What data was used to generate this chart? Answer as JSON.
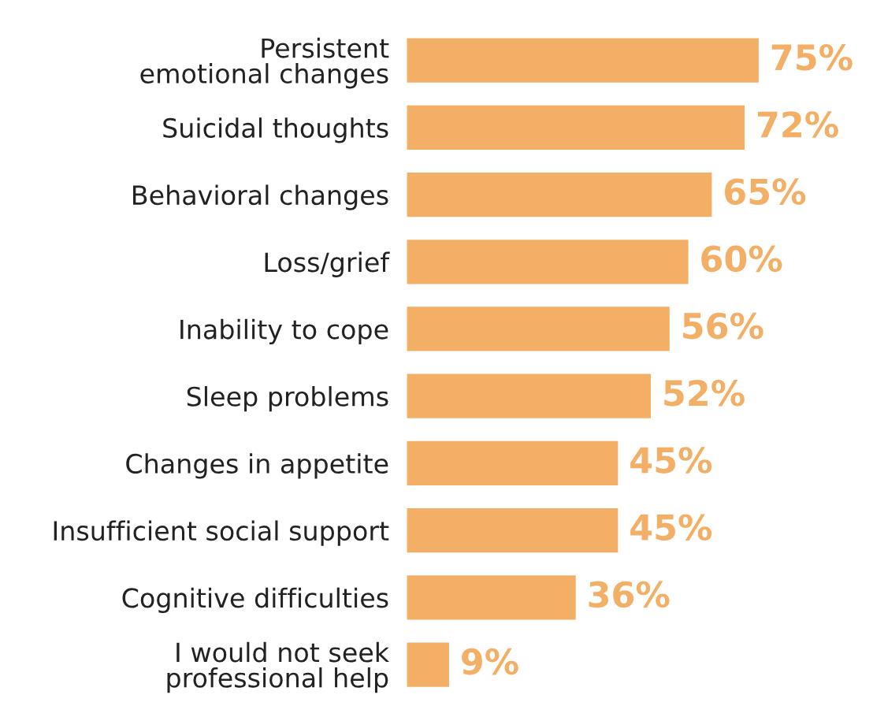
{
  "chart_data": {
    "type": "bar",
    "orientation": "horizontal",
    "categories": [
      "Persistent\nemotional changes",
      "Suicidal thoughts",
      "Behavioral changes",
      "Loss/grief",
      "Inability to cope",
      "Sleep problems",
      "Changes in appetite",
      "Insufficient social support",
      "Cognitive difficulties",
      "I would not seek\nprofessional help"
    ],
    "values": [
      75,
      72,
      65,
      60,
      56,
      52,
      45,
      45,
      36,
      9
    ],
    "value_labels": [
      "75%",
      "72%",
      "65%",
      "60%",
      "56%",
      "52%",
      "45%",
      "45%",
      "36%",
      "9%"
    ],
    "color": "#f2af65",
    "grid": false,
    "legend": false
  }
}
